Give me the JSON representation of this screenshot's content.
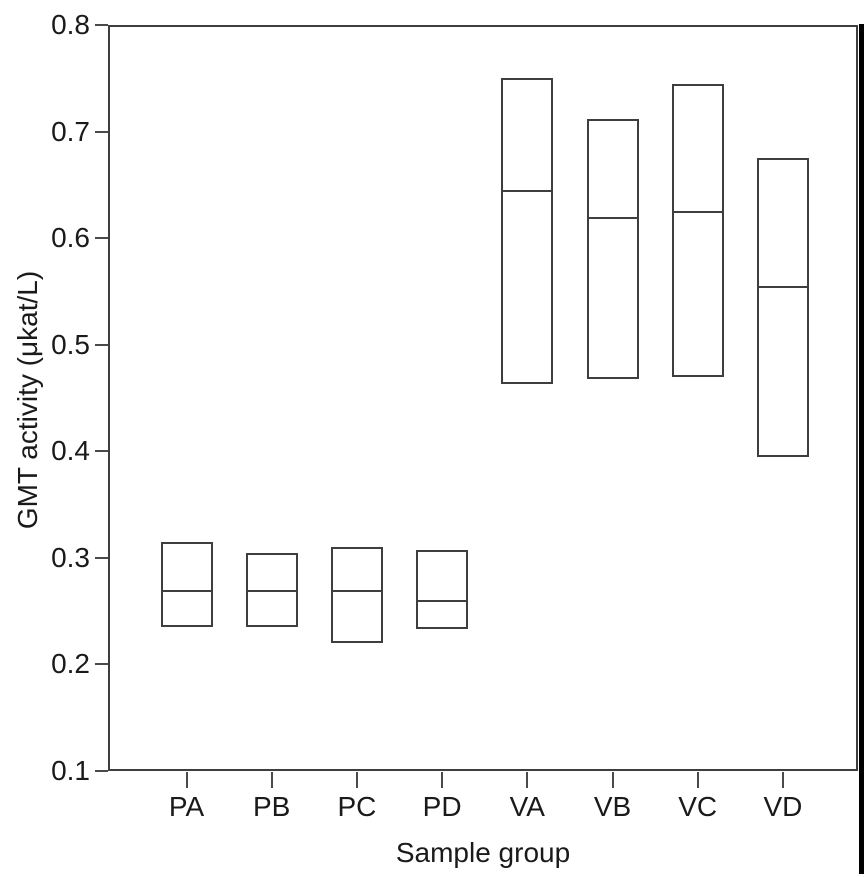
{
  "chart_data": {
    "type": "box",
    "title": "",
    "xlabel": "Sample group",
    "ylabel": "GMT activity (μkat/L)",
    "ylim": [
      0.1,
      0.8
    ],
    "y_ticks": [
      0.8,
      0.7,
      0.6,
      0.5,
      0.4,
      0.3,
      0.2,
      0.1
    ],
    "y_tick_labels": [
      "0.8",
      "0.7",
      "0.6",
      "0.5",
      "0.4",
      "0.3",
      "0.2",
      "0.1"
    ],
    "categories": [
      "PA",
      "PB",
      "PC",
      "PD",
      "VA",
      "VB",
      "VC",
      "VD"
    ],
    "series": [
      {
        "name": "PA",
        "q1": 0.235,
        "median": 0.27,
        "q3": 0.315
      },
      {
        "name": "PB",
        "q1": 0.235,
        "median": 0.27,
        "q3": 0.305
      },
      {
        "name": "PC",
        "q1": 0.22,
        "median": 0.27,
        "q3": 0.31
      },
      {
        "name": "PD",
        "q1": 0.233,
        "median": 0.26,
        "q3": 0.307
      },
      {
        "name": "VA",
        "q1": 0.463,
        "median": 0.645,
        "q3": 0.75
      },
      {
        "name": "VB",
        "q1": 0.468,
        "median": 0.62,
        "q3": 0.712
      },
      {
        "name": "VC",
        "q1": 0.47,
        "median": 0.625,
        "q3": 0.745
      },
      {
        "name": "VD",
        "q1": 0.395,
        "median": 0.555,
        "q3": 0.675
      }
    ],
    "grid": false,
    "legend": "none",
    "whiskers": false,
    "line_color": "#3e3e3e",
    "text_color": "#1a1a1a",
    "background_color": "#ffffff",
    "scan_border_color": "#000000"
  }
}
